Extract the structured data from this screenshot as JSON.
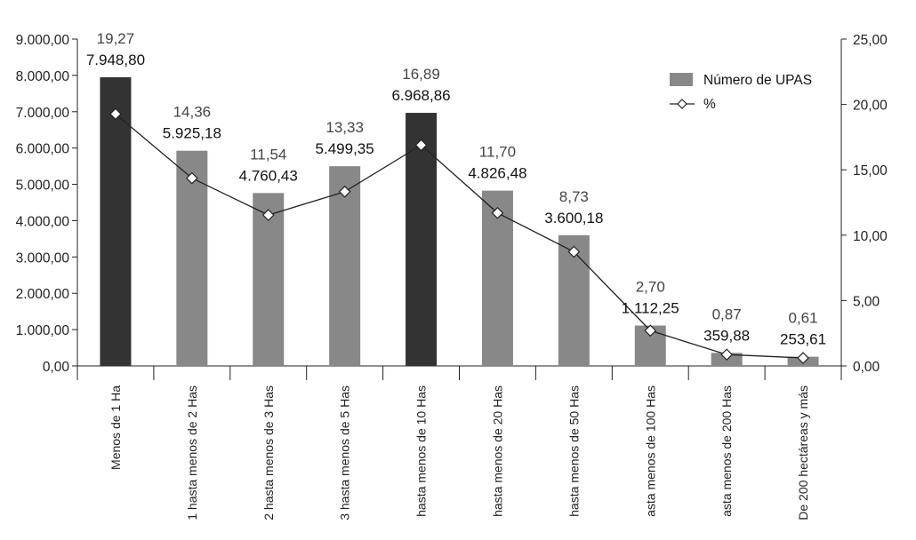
{
  "chart_data": {
    "type": "bar",
    "categories": [
      "Menos de 1 Ha",
      "1 hasta menos de 2 Has",
      "2 hasta menos de 3 Has",
      "3 hasta menos de 5 Has",
      "hasta menos de 10 Has",
      "hasta menos de 20 Has",
      "hasta menos de 50 Has",
      "asta menos de 100 Has",
      "asta menos de 200 Has",
      "De 200 hectáreas y más"
    ],
    "series": [
      {
        "name": "Número de UPAS",
        "kind": "bar",
        "axis": "left",
        "values": [
          7948.8,
          5925.18,
          4760.43,
          5499.35,
          6968.86,
          4826.48,
          3600.18,
          1112.25,
          359.88,
          253.61
        ],
        "labels": [
          "7.948,80",
          "5.925,18",
          "4.760,43",
          "5.499,35",
          "6.968,86",
          "4.826,48",
          "3.600,18",
          "1.112,25",
          "359,88",
          "253,61"
        ],
        "colors": [
          "#333333",
          "#888888",
          "#888888",
          "#888888",
          "#333333",
          "#888888",
          "#888888",
          "#888888",
          "#888888",
          "#888888"
        ]
      },
      {
        "name": "%",
        "kind": "line",
        "axis": "right",
        "values": [
          19.27,
          14.36,
          11.54,
          13.33,
          16.89,
          11.7,
          8.73,
          2.7,
          0.87,
          0.61
        ],
        "labels": [
          "19,27",
          "14,36",
          "11,54",
          "13,33",
          "16,89",
          "11,70",
          "8,73",
          "2,70",
          "0,87",
          "0,61"
        ],
        "color": "#222222"
      }
    ],
    "y_left": {
      "ylim": [
        0,
        9000
      ],
      "ticks": [
        "9.000,00",
        "8.000,00",
        "7.000,00",
        "6.000,00",
        "5.000,00",
        "4.000,00",
        "3.000,00",
        "2.000,00",
        "1.000,00",
        "0,00"
      ]
    },
    "y_right": {
      "ylim": [
        0,
        25
      ],
      "ticks": [
        "25,00",
        "20,00",
        "15,00",
        "10,00",
        "5,00",
        "0,00"
      ]
    },
    "grid": false,
    "legend": {
      "position": "top-right",
      "entries": [
        "Número de UPAS",
        "%"
      ]
    }
  }
}
